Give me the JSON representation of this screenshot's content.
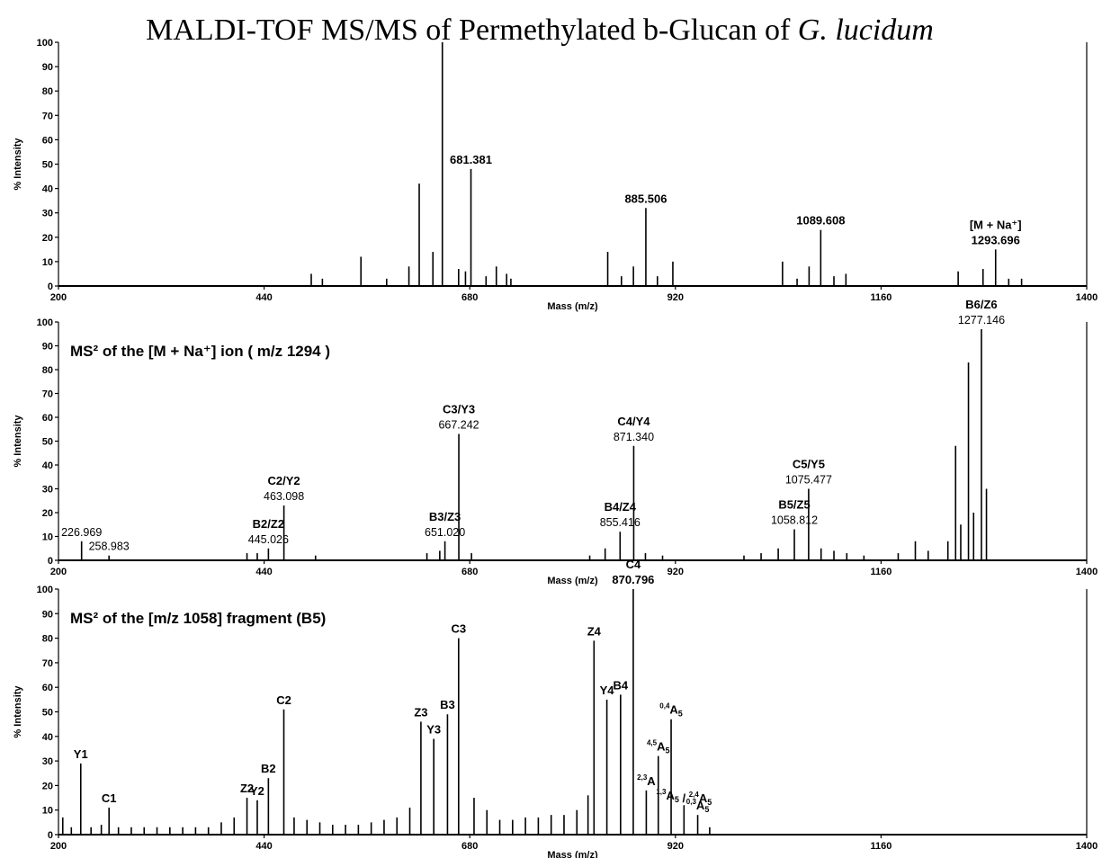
{
  "title": "MALDI-TOF MS/MS of Permethylated b-Glucan of ",
  "title_species": "G. lucidum",
  "chart_data": [
    {
      "type": "spectrum",
      "xlabel": "Mass (m/z)",
      "ylabel": "% Intensity",
      "xlim": [
        200,
        1400
      ],
      "xticks": [
        200,
        440,
        680,
        920,
        1160,
        1400
      ],
      "ylim": [
        0,
        100
      ],
      "yticks": [
        0,
        10,
        20,
        30,
        40,
        50,
        60,
        70,
        80,
        90,
        100
      ],
      "x": [
        495,
        508,
        553,
        583,
        609,
        621,
        637,
        648,
        667,
        675,
        681.381,
        699,
        711,
        723,
        728,
        841,
        857,
        871,
        885.506,
        899,
        917,
        1045,
        1062,
        1076,
        1089.608,
        1105,
        1119,
        1250,
        1279,
        1293.696,
        1309,
        1324
      ],
      "values": [
        5,
        3,
        12,
        3,
        8,
        42,
        14,
        100,
        7,
        6,
        48,
        4,
        8,
        5,
        3,
        14,
        4,
        8,
        32,
        4,
        10,
        10,
        3,
        8,
        23,
        4,
        5,
        6,
        7,
        15,
        3,
        3
      ],
      "annotations": [
        {
          "x": 681.381,
          "y": 48,
          "lines": [
            "681.381"
          ]
        },
        {
          "x": 885.506,
          "y": 32,
          "lines": [
            "885.506"
          ]
        },
        {
          "x": 1089.608,
          "y": 23,
          "lines": [
            "1089.608"
          ]
        },
        {
          "x": 1293.696,
          "y": 15,
          "lines": [
            "[M + Na⁺]",
            "1293.696"
          ]
        }
      ]
    },
    {
      "type": "spectrum",
      "subtitle": "MS² of the [M + Na⁺] ion ( m/z 1294 )",
      "xlabel": "Mass (m/z)",
      "ylabel": "% Intensity",
      "xlim": [
        200,
        1400
      ],
      "xticks": [
        200,
        440,
        680,
        920,
        1160,
        1400
      ],
      "ylim": [
        0,
        100
      ],
      "yticks": [
        0,
        10,
        20,
        30,
        40,
        50,
        60,
        70,
        80,
        90,
        100
      ],
      "x": [
        226.969,
        258.983,
        420,
        432,
        445.026,
        463.098,
        500,
        630,
        645,
        651.02,
        667.242,
        682,
        820,
        838,
        855.416,
        871.34,
        885,
        905,
        1000,
        1020,
        1040,
        1058.812,
        1075.477,
        1090,
        1105,
        1120,
        1140,
        1180,
        1200,
        1215,
        1238,
        1247,
        1253,
        1262,
        1268,
        1277.146,
        1283
      ],
      "values": [
        8,
        2,
        3,
        3,
        5,
        23,
        2,
        3,
        4,
        8,
        53,
        3,
        2,
        5,
        12,
        48,
        3,
        2,
        2,
        3,
        5,
        13,
        30,
        5,
        4,
        3,
        2,
        3,
        8,
        4,
        8,
        48,
        15,
        83,
        20,
        97,
        30
      ],
      "annotations": [
        {
          "x": 226.969,
          "y": 8,
          "lines": [
            "226.969"
          ]
        },
        {
          "x": 258.983,
          "y": 2,
          "lines": [
            "258.983"
          ]
        },
        {
          "x": 445.026,
          "y": 5,
          "lines": [
            "B2/Z2",
            "445.026"
          ]
        },
        {
          "x": 463.098,
          "y": 23,
          "lines": [
            "C2/Y2",
            "463.098"
          ]
        },
        {
          "x": 651.02,
          "y": 8,
          "lines": [
            "B3/Z3",
            "651.020"
          ]
        },
        {
          "x": 667.242,
          "y": 53,
          "lines": [
            "C3/Y3",
            "667.242"
          ]
        },
        {
          "x": 855.416,
          "y": 12,
          "lines": [
            "B4/Z4",
            "855.416"
          ]
        },
        {
          "x": 871.34,
          "y": 48,
          "lines": [
            "C4/Y4",
            "871.340"
          ]
        },
        {
          "x": 1058.812,
          "y": 13,
          "lines": [
            "B5/Z5",
            "1058.812"
          ]
        },
        {
          "x": 1075.477,
          "y": 30,
          "lines": [
            "C5/Y5",
            "1075.477"
          ]
        },
        {
          "x": 1277.146,
          "y": 97,
          "lines": [
            "B6/Z6",
            "1277.146"
          ]
        }
      ]
    },
    {
      "type": "spectrum",
      "subtitle": "MS² of the [m/z 1058] fragment (B5)",
      "xlabel": "Mass (m/z)",
      "ylabel": "% Intensity",
      "xlim": [
        200,
        1400
      ],
      "xticks": [
        200,
        440,
        680,
        920,
        1160,
        1400
      ],
      "ylim": [
        0,
        100
      ],
      "yticks": [
        0,
        10,
        20,
        30,
        40,
        50,
        60,
        70,
        80,
        90,
        100
      ],
      "x": [
        205,
        215,
        226,
        238,
        250,
        259,
        270,
        285,
        300,
        315,
        330,
        345,
        360,
        375,
        390,
        405,
        420,
        432,
        445,
        463,
        475,
        490,
        505,
        520,
        535,
        550,
        565,
        580,
        595,
        610,
        623,
        638,
        654,
        667,
        685,
        700,
        715,
        730,
        745,
        760,
        775,
        790,
        805,
        818,
        825,
        840,
        856,
        870.796,
        886,
        900,
        915,
        930,
        946,
        960
      ],
      "values": [
        7,
        3,
        29,
        3,
        4,
        11,
        3,
        3,
        3,
        3,
        3,
        3,
        3,
        3,
        5,
        7,
        15,
        14,
        23,
        51,
        7,
        6,
        5,
        4,
        4,
        4,
        5,
        6,
        7,
        11,
        46,
        39,
        49,
        80,
        15,
        10,
        6,
        6,
        7,
        7,
        8,
        8,
        10,
        16,
        79,
        55,
        57,
        100,
        18,
        32,
        47,
        12,
        8,
        3
      ],
      "annotations": [
        {
          "x": 226,
          "y": 29,
          "lines": [
            "Y1"
          ]
        },
        {
          "x": 259,
          "y": 11,
          "lines": [
            "C1"
          ]
        },
        {
          "x": 420,
          "y": 15,
          "lines": [
            "Z2"
          ]
        },
        {
          "x": 432,
          "y": 14,
          "lines": [
            "Y2"
          ]
        },
        {
          "x": 445,
          "y": 23,
          "lines": [
            "B2"
          ]
        },
        {
          "x": 463,
          "y": 51,
          "lines": [
            "C2"
          ]
        },
        {
          "x": 623,
          "y": 46,
          "lines": [
            "Z3"
          ]
        },
        {
          "x": 638,
          "y": 39,
          "lines": [
            "Y3"
          ]
        },
        {
          "x": 654,
          "y": 49,
          "lines": [
            "B3"
          ]
        },
        {
          "x": 667,
          "y": 80,
          "lines": [
            "C3"
          ]
        },
        {
          "x": 825,
          "y": 79,
          "lines": [
            "Z4"
          ]
        },
        {
          "x": 840,
          "y": 55,
          "lines": [
            "Y4"
          ]
        },
        {
          "x": 856,
          "y": 57,
          "lines": [
            "B4"
          ]
        },
        {
          "x": 870.796,
          "y": 100,
          "lines": [
            "C4",
            "870.796"
          ]
        },
        {
          "x": 886,
          "y": 18,
          "lines": [
            [
              {
                "sup": "2,3",
                "text": "A"
              }
            ]
          ]
        },
        {
          "x": 900,
          "y": 32,
          "lines": [
            [
              {
                "sup": "4,5",
                "text": "A",
                "sub": "5"
              }
            ]
          ]
        },
        {
          "x": 915,
          "y": 47,
          "lines": [
            [
              {
                "sup": "0,4",
                "text": "A",
                "sub": "5"
              }
            ]
          ]
        },
        {
          "x": 930,
          "y": 12,
          "lines": [
            [
              {
                "sup": "1,3",
                "text": "A",
                "sub": "5"
              },
              {
                "text": " / "
              },
              {
                "sup": "2,4",
                "text": "A",
                "sub": "5"
              }
            ]
          ]
        },
        {
          "x": 946,
          "y": 8,
          "lines": [
            [
              {
                "sup": "0,3",
                "text": "A",
                "sub": "5"
              }
            ]
          ]
        }
      ]
    }
  ]
}
